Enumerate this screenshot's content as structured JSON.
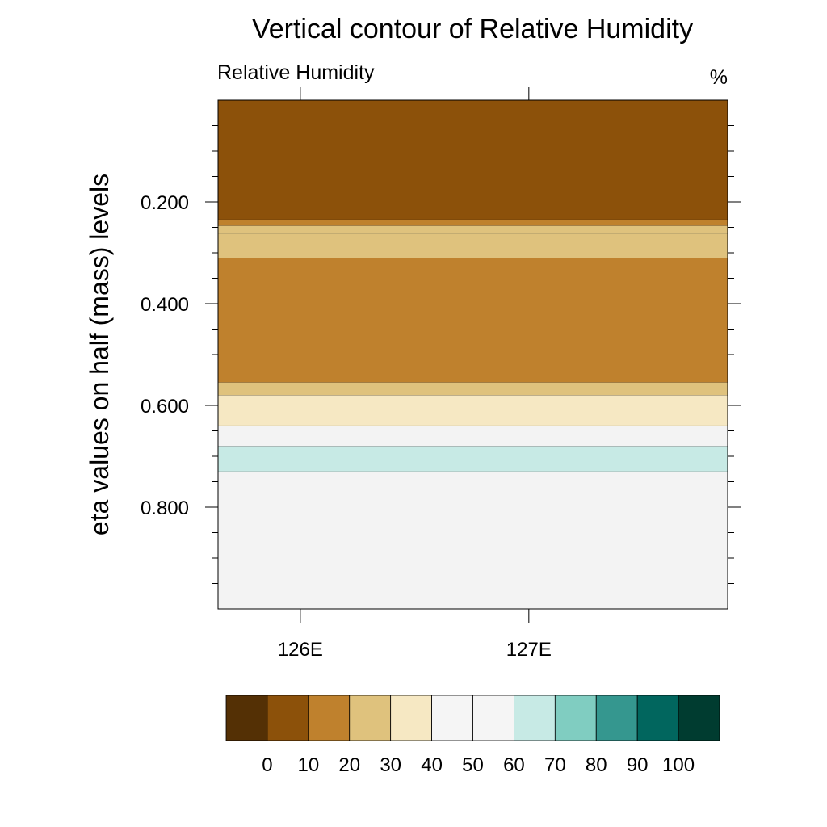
{
  "chart_data": {
    "type": "heatmap",
    "title": "Vertical contour of Relative Humidity",
    "left_string": "Relative Humidity",
    "right_string": "%",
    "ylabel": "eta values on half (mass) levels",
    "xlabel": "",
    "x_range_deg": [
      125.64,
      127.87
    ],
    "y_range_eta": [
      0.0,
      1.0
    ],
    "x_ticks": [
      {
        "value": 126,
        "label": "126E"
      },
      {
        "value": 127,
        "label": "127E"
      }
    ],
    "y_ticks": [
      {
        "value": 0.2,
        "label": "0.200"
      },
      {
        "value": 0.4,
        "label": "0.400"
      },
      {
        "value": 0.6,
        "label": "0.600"
      },
      {
        "value": 0.8,
        "label": "0.800"
      }
    ],
    "y_minor_ticks": [
      0.05,
      0.1,
      0.15,
      0.25,
      0.3,
      0.35,
      0.45,
      0.5,
      0.55,
      0.65,
      0.7,
      0.75,
      0.85,
      0.9,
      0.95
    ],
    "y_axis_reversed": true,
    "bands": [
      {
        "eta_top": 0.0,
        "eta_bottom": 0.235,
        "rh_bin": "10-20"
      },
      {
        "eta_top": 0.235,
        "eta_bottom": 0.247,
        "rh_bin": "20-30"
      },
      {
        "eta_top": 0.247,
        "eta_bottom": 0.262,
        "rh_bin": "30-40"
      },
      {
        "eta_top": 0.262,
        "eta_bottom": 0.31,
        "rh_bin": "30-40"
      },
      {
        "eta_top": 0.31,
        "eta_bottom": 0.555,
        "rh_bin": "20-30"
      },
      {
        "eta_top": 0.555,
        "eta_bottom": 0.58,
        "rh_bin": "30-40"
      },
      {
        "eta_top": 0.58,
        "eta_bottom": 0.64,
        "rh_bin": "40-50"
      },
      {
        "eta_top": 0.64,
        "eta_bottom": 0.68,
        "rh_bin": "50-60"
      },
      {
        "eta_top": 0.68,
        "eta_bottom": 0.73,
        "rh_bin": "70-80"
      },
      {
        "eta_top": 0.73,
        "eta_bottom": 1.0,
        "rh_bin": "50-60"
      }
    ],
    "colorbar": {
      "levels": [
        "0",
        "10",
        "20",
        "30",
        "40",
        "50",
        "60",
        "70",
        "80",
        "90",
        "100"
      ],
      "bins": [
        "<0",
        "0-10",
        "10-20",
        "20-30",
        "30-40",
        "40-50",
        "50-60",
        "60-70",
        "70-80",
        "80-90",
        "90-100",
        ">100"
      ],
      "colors": [
        "#543005",
        "#8c510a",
        "#bf812d",
        "#dfc27d",
        "#f6e8c3",
        "#f5f5f5",
        "#f5f5f5",
        "#c7eae5",
        "#80cdc1",
        "#35978f",
        "#01665e",
        "#003c30"
      ],
      "bin_colors": {
        "10-20": "#8c510a",
        "20-30": "#bf812d",
        "30-40": "#dfc27d",
        "40-50": "#f6e8c3",
        "50-60": "#f3f3f3",
        "70-80": "#c7eae5"
      }
    }
  }
}
